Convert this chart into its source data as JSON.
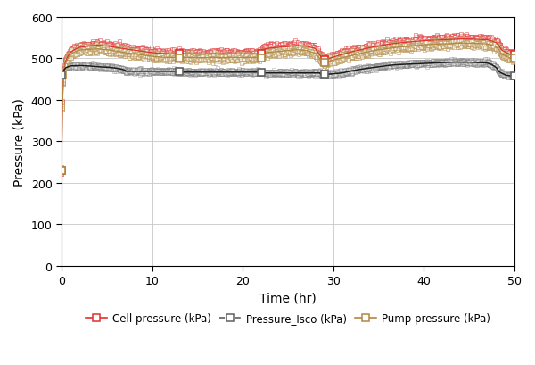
{
  "title": "",
  "xlabel": "Time (hr)",
  "ylabel": "Pressure (kPa)",
  "xlim": [
    0,
    50
  ],
  "ylim": [
    0,
    600
  ],
  "xticks": [
    0,
    10,
    20,
    30,
    40,
    50
  ],
  "yticks": [
    0,
    100,
    200,
    300,
    400,
    500,
    600
  ],
  "legend_labels": [
    "Cell pressure (kPa)",
    "Pressure_Isco (kPa)",
    "Pump pressure (kPa)"
  ],
  "cell_color": "#e03030",
  "isco_color": "#606060",
  "pump_color": "#b08840",
  "background_color": "#ffffff",
  "grid_color": "#c8c8c8",
  "figure_facecolor": "#ffffff",
  "legend_fontsize": 8.5
}
